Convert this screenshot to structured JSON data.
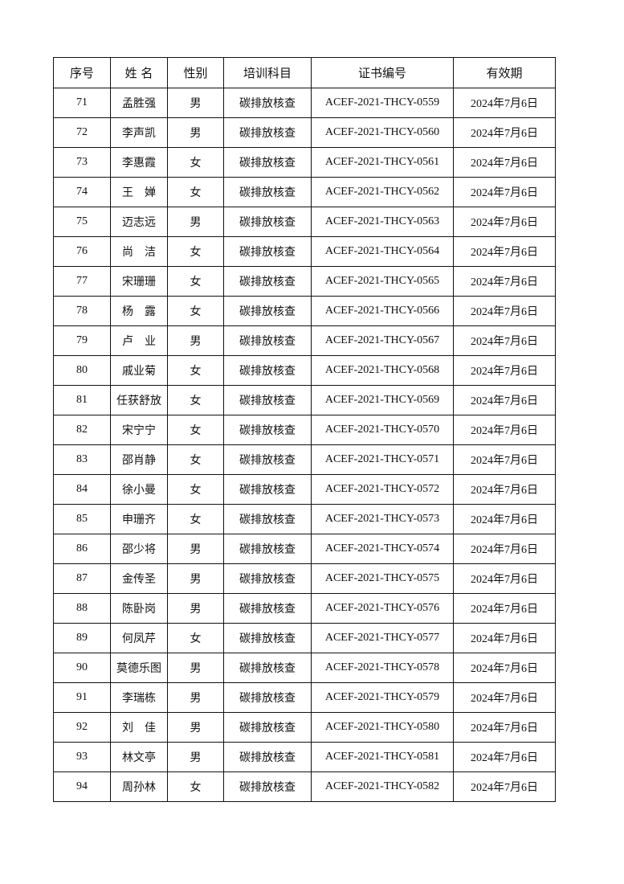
{
  "table": {
    "headers": [
      "序号",
      "姓 名",
      "性别",
      "培训科目",
      "证书编号",
      "有效期"
    ],
    "rows": [
      [
        "71",
        "孟胜强",
        "男",
        "碳排放核查",
        "ACEF-2021-THCY-0559",
        "2024年7月6日"
      ],
      [
        "72",
        "李声凯",
        "男",
        "碳排放核查",
        "ACEF-2021-THCY-0560",
        "2024年7月6日"
      ],
      [
        "73",
        "李惠霞",
        "女",
        "碳排放核查",
        "ACEF-2021-THCY-0561",
        "2024年7月6日"
      ],
      [
        "74",
        "王　婵",
        "女",
        "碳排放核查",
        "ACEF-2021-THCY-0562",
        "2024年7月6日"
      ],
      [
        "75",
        "迈志远",
        "男",
        "碳排放核查",
        "ACEF-2021-THCY-0563",
        "2024年7月6日"
      ],
      [
        "76",
        "尚　洁",
        "女",
        "碳排放核查",
        "ACEF-2021-THCY-0564",
        "2024年7月6日"
      ],
      [
        "77",
        "宋珊珊",
        "女",
        "碳排放核查",
        "ACEF-2021-THCY-0565",
        "2024年7月6日"
      ],
      [
        "78",
        "杨　露",
        "女",
        "碳排放核查",
        "ACEF-2021-THCY-0566",
        "2024年7月6日"
      ],
      [
        "79",
        "卢　业",
        "男",
        "碳排放核查",
        "ACEF-2021-THCY-0567",
        "2024年7月6日"
      ],
      [
        "80",
        "戚业菊",
        "女",
        "碳排放核查",
        "ACEF-2021-THCY-0568",
        "2024年7月6日"
      ],
      [
        "81",
        "任获舒放",
        "女",
        "碳排放核查",
        "ACEF-2021-THCY-0569",
        "2024年7月6日"
      ],
      [
        "82",
        "宋宁宁",
        "女",
        "碳排放核查",
        "ACEF-2021-THCY-0570",
        "2024年7月6日"
      ],
      [
        "83",
        "邵肖静",
        "女",
        "碳排放核查",
        "ACEF-2021-THCY-0571",
        "2024年7月6日"
      ],
      [
        "84",
        "徐小曼",
        "女",
        "碳排放核查",
        "ACEF-2021-THCY-0572",
        "2024年7月6日"
      ],
      [
        "85",
        "申珊齐",
        "女",
        "碳排放核查",
        "ACEF-2021-THCY-0573",
        "2024年7月6日"
      ],
      [
        "86",
        "邵少将",
        "男",
        "碳排放核查",
        "ACEF-2021-THCY-0574",
        "2024年7月6日"
      ],
      [
        "87",
        "金传圣",
        "男",
        "碳排放核查",
        "ACEF-2021-THCY-0575",
        "2024年7月6日"
      ],
      [
        "88",
        "陈卧岗",
        "男",
        "碳排放核查",
        "ACEF-2021-THCY-0576",
        "2024年7月6日"
      ],
      [
        "89",
        "何凤芹",
        "女",
        "碳排放核查",
        "ACEF-2021-THCY-0577",
        "2024年7月6日"
      ],
      [
        "90",
        "莫德乐图",
        "男",
        "碳排放核查",
        "ACEF-2021-THCY-0578",
        "2024年7月6日"
      ],
      [
        "91",
        "李瑞栋",
        "男",
        "碳排放核查",
        "ACEF-2021-THCY-0579",
        "2024年7月6日"
      ],
      [
        "92",
        "刘　佳",
        "男",
        "碳排放核查",
        "ACEF-2021-THCY-0580",
        "2024年7月6日"
      ],
      [
        "93",
        "林文亭",
        "男",
        "碳排放核查",
        "ACEF-2021-THCY-0581",
        "2024年7月6日"
      ],
      [
        "94",
        "周孙林",
        "女",
        "碳排放核查",
        "ACEF-2021-THCY-0582",
        "2024年7月6日"
      ]
    ]
  }
}
